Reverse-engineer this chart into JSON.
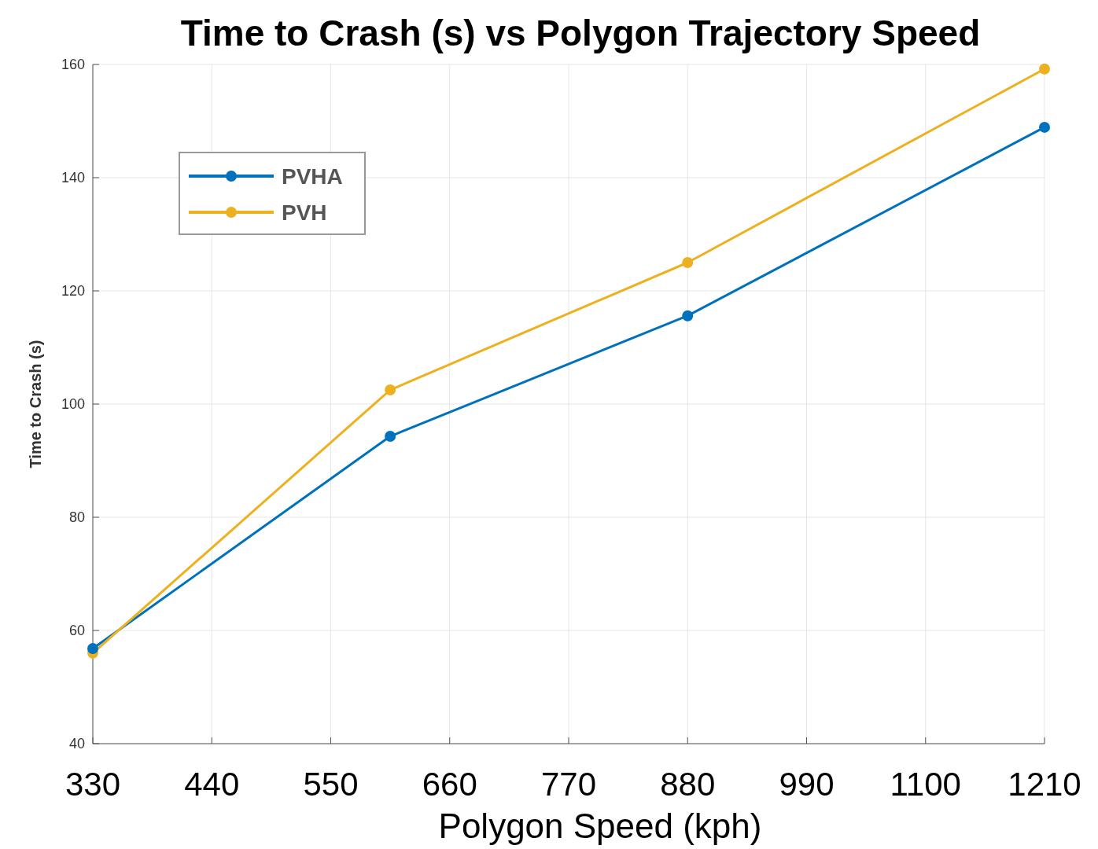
{
  "chart_data": {
    "type": "line",
    "title": "Time to Crash (s) vs Polygon Trajectory Speed",
    "xlabel": "Polygon Speed (kph)",
    "ylabel": "Time to Crash (s)",
    "x": [
      330,
      605,
      880,
      1210
    ],
    "series": [
      {
        "name": "PVHA",
        "color": "#0072bd",
        "values": [
          56.8,
          94.3,
          115.6,
          148.9
        ]
      },
      {
        "name": "PVH",
        "color": "#edb120",
        "values": [
          56,
          102.5,
          125,
          159.2
        ]
      }
    ],
    "xlim": [
      330,
      1210
    ],
    "xticks": [
      330,
      440,
      550,
      660,
      770,
      880,
      990,
      1100,
      1210
    ],
    "ylim": [
      40,
      160
    ],
    "yticks": [
      40,
      60,
      80,
      100,
      120,
      140,
      160
    ],
    "grid": true,
    "legend": "top left",
    "marker": "circle",
    "line_style": "solid"
  }
}
